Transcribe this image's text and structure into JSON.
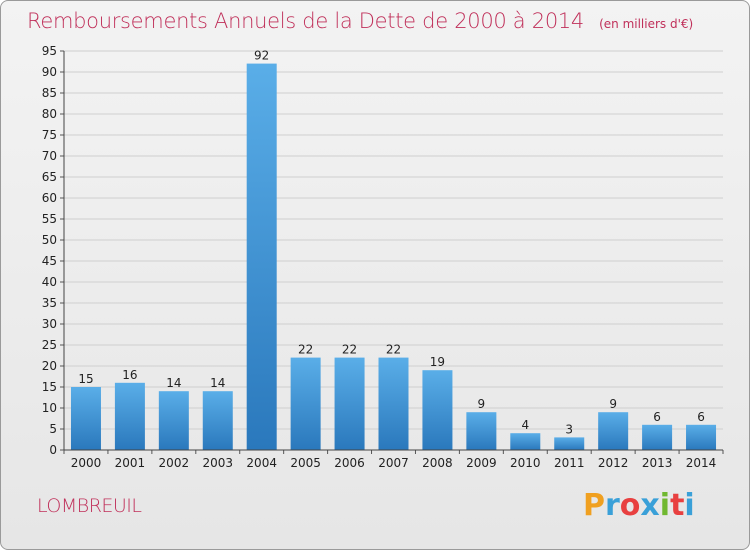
{
  "title": "Remboursements Annuels de la Dette de 2000 à 2014",
  "subtitle": "(en milliers d'€)",
  "commune": "LOMBREUIL",
  "brand": {
    "letters": [
      "P",
      "r",
      "o",
      "x",
      "i",
      "t",
      "i"
    ],
    "colors": [
      "#f0a020",
      "#3aa0d8",
      "#e84040",
      "#3aa0d8",
      "#70b830",
      "#e84040",
      "#3aa0d8"
    ]
  },
  "colors": {
    "bar_top": "#5aaee8",
    "bar_bottom": "#2a78bc",
    "grid": "#cfcfcf",
    "axis_text": "#222222",
    "accent": "#c0305a"
  },
  "chart_data": {
    "type": "bar",
    "title": "Remboursements Annuels de la Dette de 2000 à 2014",
    "subtitle": "(en milliers d'€)",
    "categories": [
      "2000",
      "2001",
      "2002",
      "2003",
      "2004",
      "2005",
      "2006",
      "2007",
      "2008",
      "2009",
      "2010",
      "2011",
      "2012",
      "2013",
      "2014"
    ],
    "values": [
      15,
      16,
      14,
      14,
      92,
      22,
      22,
      22,
      19,
      9,
      4,
      3,
      9,
      6,
      6
    ],
    "ylim": [
      0,
      95
    ],
    "yticks": [
      0,
      5,
      10,
      15,
      20,
      25,
      30,
      35,
      40,
      45,
      50,
      55,
      60,
      65,
      70,
      75,
      80,
      85,
      90,
      95
    ],
    "grid": true,
    "xlabel": "",
    "ylabel": ""
  }
}
